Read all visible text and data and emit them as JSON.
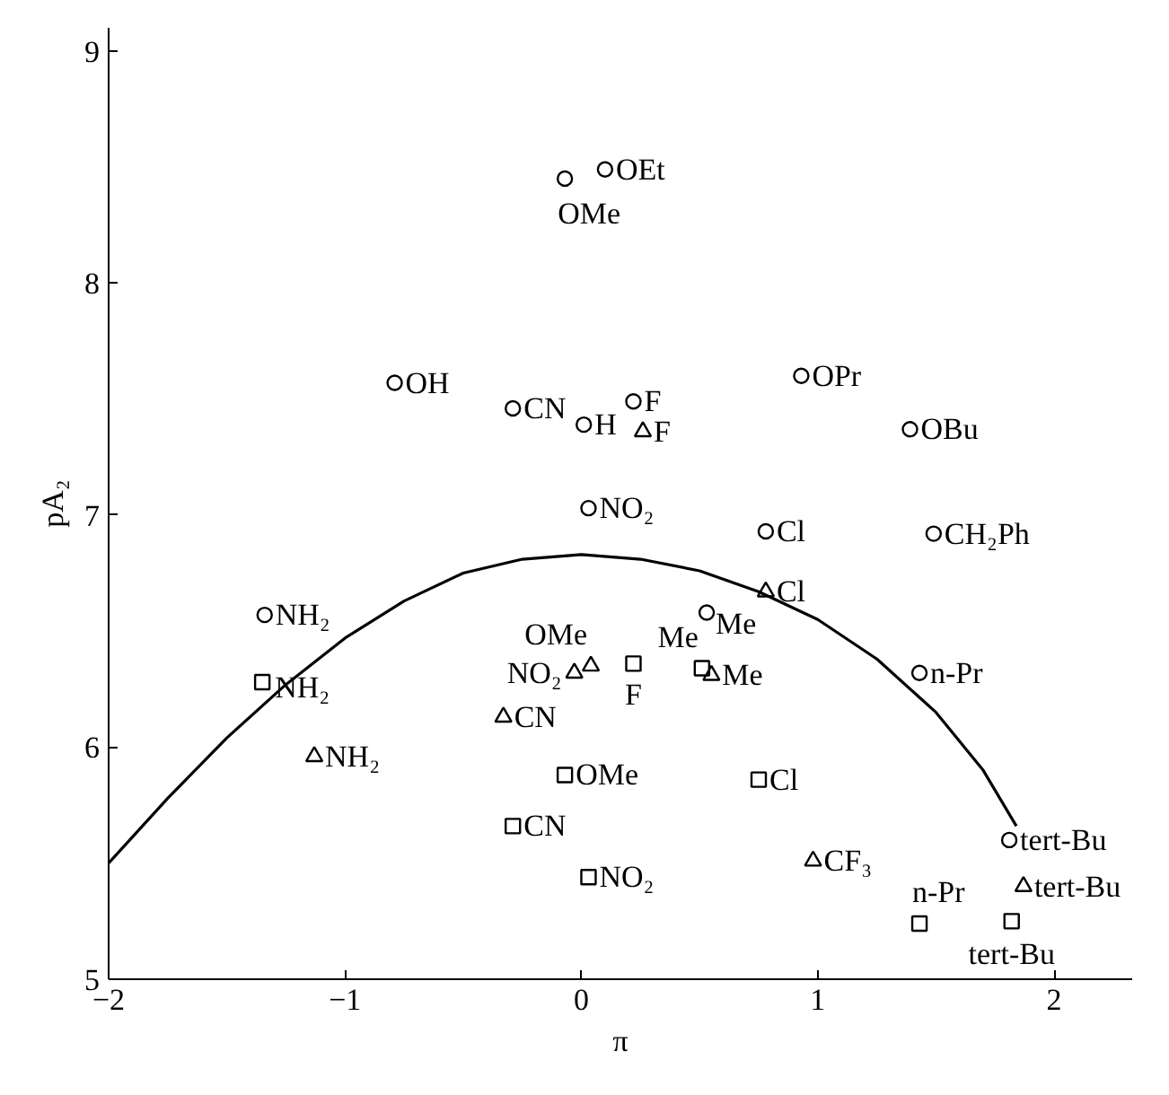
{
  "chart_data": {
    "type": "scatter",
    "xlabel": "π",
    "ylabel": "pA₂",
    "xlim": [
      -2,
      2.33
    ],
    "ylim": [
      5,
      9.1
    ],
    "xticks": [
      {
        "value": -2,
        "label": "−2"
      },
      {
        "value": -1,
        "label": "−1"
      },
      0,
      1,
      2
    ],
    "yticks": [
      5,
      6,
      7,
      8,
      9
    ],
    "grid": false,
    "series": [
      {
        "marker": "circle",
        "color": "#000000",
        "x": [
          -0.07,
          0.1,
          -0.79,
          -0.29,
          0.01,
          0.22,
          0.93,
          1.39,
          0.03,
          0.78,
          1.49,
          -1.34,
          0.53,
          1.43,
          1.81
        ],
        "values": [
          8.45,
          8.49,
          7.57,
          7.46,
          7.39,
          7.49,
          7.6,
          7.37,
          7.03,
          6.93,
          6.92,
          6.57,
          6.58,
          6.32,
          5.6
        ],
        "value_labels": [
          "OMe",
          "OEt",
          "OH",
          "CN",
          "H",
          "F",
          "OPr",
          "OBu",
          "NO₂",
          "Cl",
          "CH₂Ph",
          "NH₂",
          "Me",
          "n-Pr",
          "tert-Bu"
        ]
      },
      {
        "marker": "triangle",
        "color": "#000000",
        "x": [
          0.26,
          0.78,
          0.04,
          -0.03,
          0.55,
          -0.33,
          -1.13,
          0.98,
          1.87
        ],
        "values": [
          7.36,
          6.67,
          6.35,
          6.32,
          6.31,
          6.13,
          5.96,
          5.51,
          5.4
        ],
        "value_labels": [
          "F",
          "Cl",
          "OMe",
          "NO₂",
          "Me",
          "CN",
          "NH₂",
          "CF₃",
          "tert-Bu"
        ]
      },
      {
        "marker": "square",
        "color": "#000000",
        "x": [
          -1.35,
          0.22,
          0.51,
          -0.07,
          -0.29,
          0.03,
          0.75,
          1.43,
          1.82
        ],
        "values": [
          6.28,
          6.36,
          6.34,
          5.88,
          5.66,
          5.44,
          5.86,
          5.24,
          5.25
        ],
        "value_labels": [
          "NH₂",
          "F",
          "Me",
          "OMe",
          "CN",
          "NO₂",
          "Cl",
          "n-Pr",
          "tert-Bu"
        ]
      },
      {
        "type": "line",
        "color": "#000000",
        "line_style": "solid",
        "x": [
          -2,
          -1.75,
          -1.5,
          -1.25,
          -1,
          -0.75,
          -0.5,
          -0.25,
          0,
          0.25,
          0.5,
          0.75,
          1,
          1.25,
          1.5,
          1.7,
          1.84
        ],
        "values": [
          5.5,
          5.78,
          6.04,
          6.27,
          6.47,
          6.63,
          6.75,
          6.81,
          6.83,
          6.81,
          6.76,
          6.67,
          6.55,
          6.38,
          6.15,
          5.9,
          5.66
        ]
      }
    ]
  }
}
